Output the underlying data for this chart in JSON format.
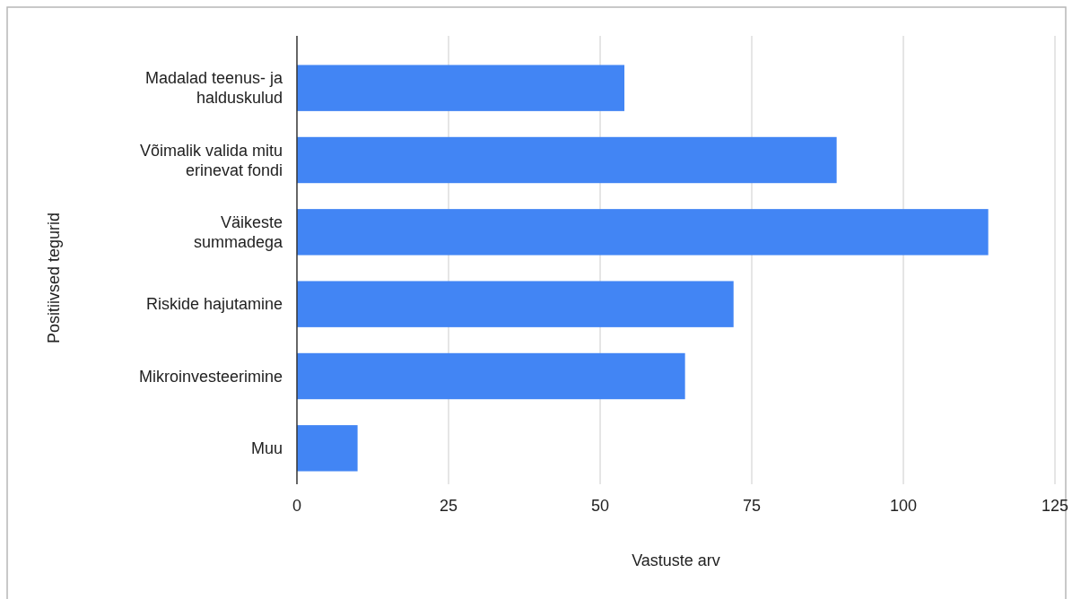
{
  "chart_data": {
    "type": "bar",
    "orientation": "horizontal",
    "xlabel": "Vastuste arv",
    "ylabel": "Positiivsed tegurid",
    "categories": [
      "Madalad teenus- ja\nhalduskulud",
      "Võimalik valida mitu\nerinevat fondi",
      "Väikeste\nsummadega",
      "Riskide hajutamine",
      "Mikroinvesteerimine",
      "Muu"
    ],
    "values": [
      54,
      89,
      114,
      72,
      64,
      10
    ],
    "color": "#4285f4",
    "xlim": [
      0,
      125
    ],
    "xticks": [
      0,
      25,
      50,
      75,
      100,
      125
    ],
    "grid": "x"
  }
}
